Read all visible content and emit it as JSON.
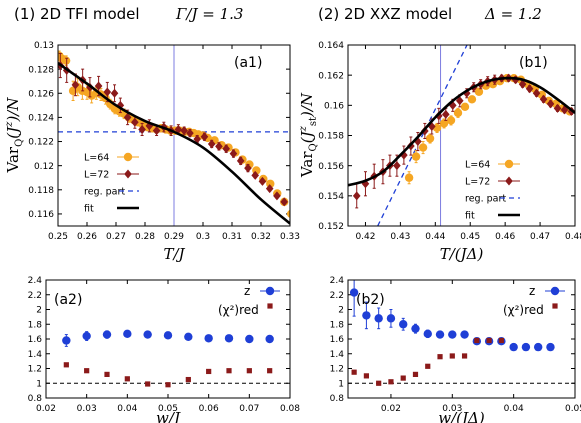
{
  "headers": {
    "left": {
      "label": "(1) 2D TFI model",
      "param": "Γ/J = 1.3"
    },
    "right": {
      "label": "(2) 2D XXZ model",
      "param": "Δ = 1.2"
    }
  },
  "colors": {
    "L64": "#f5a623",
    "L72": "#8b1a1a",
    "z": "#1f3fd6",
    "chi": "#8b1a1a",
    "fit": "#000000",
    "reg": "#1f3fd6",
    "vline": "#7d7de0"
  },
  "chart_data": [
    {
      "id": "a1",
      "type": "scatter",
      "panel_label": "(a1)",
      "xlabel": "T/J",
      "ylabel": "Var_Q(J^z)/N",
      "xlim": [
        0.25,
        0.33
      ],
      "ylim": [
        0.115,
        0.13
      ],
      "xticks": [
        0.25,
        0.26,
        0.27,
        0.28,
        0.29,
        0.3,
        0.31,
        0.32,
        0.33
      ],
      "xticklabels": [
        "0.25",
        "0.26",
        "0.27",
        "0.28",
        "0.29",
        "0.3",
        "0.31",
        "0.32",
        "0.33"
      ],
      "yticks": [
        0.116,
        0.118,
        0.12,
        0.122,
        0.124,
        0.126,
        0.128,
        0.13
      ],
      "yticklabels": [
        "0.116",
        "0.118",
        "0.12",
        "0.122",
        "0.124",
        "0.126",
        "0.128",
        "0.13"
      ],
      "vline": 0.29,
      "reg_part": {
        "y": 0.1228
      },
      "fit": {
        "x": [
          0.25,
          0.26,
          0.27,
          0.28,
          0.29,
          0.3,
          0.31,
          0.32,
          0.33
        ],
        "y": [
          0.1285,
          0.1268,
          0.125,
          0.1237,
          0.1228,
          0.1215,
          0.1195,
          0.1172,
          0.1152
        ]
      },
      "legend": {
        "placement": "lower-left",
        "entries": [
          "L=64",
          "L=72",
          "reg. part",
          "fit"
        ]
      },
      "series": [
        {
          "name": "L=64",
          "marker": "circle",
          "x": [
            0.2504,
            0.2512,
            0.2528,
            0.2552,
            0.2568,
            0.2584,
            0.26,
            0.2616,
            0.2632,
            0.2648,
            0.2664,
            0.268,
            0.2696,
            0.2712,
            0.2728,
            0.2744,
            0.276,
            0.2776,
            0.2792,
            0.2808,
            0.2824,
            0.284,
            0.2856,
            0.2872,
            0.2888,
            0.2904,
            0.292,
            0.2936,
            0.2952,
            0.2968,
            0.2984,
            0.3,
            0.3016,
            0.304,
            0.3064,
            0.3088,
            0.3112,
            0.3136,
            0.316,
            0.3184,
            0.3208,
            0.3232,
            0.3256,
            0.328,
            0.3304
          ],
          "y": [
            0.1291,
            0.1289,
            0.1287,
            0.1262,
            0.1265,
            0.1262,
            0.1261,
            0.1258,
            0.126,
            0.1259,
            0.1256,
            0.1251,
            0.1247,
            0.1245,
            0.1243,
            0.124,
            0.1238,
            0.1236,
            0.1234,
            0.1232,
            0.1231,
            0.123,
            0.1231,
            0.123,
            0.1229,
            0.1229,
            0.1229,
            0.1228,
            0.1228,
            0.1227,
            0.1226,
            0.1225,
            0.1223,
            0.1221,
            0.1217,
            0.1215,
            0.1211,
            0.1205,
            0.1201,
            0.1196,
            0.1189,
            0.1185,
            0.1177,
            0.117,
            0.116
          ],
          "yerr": [
            0.0004,
            0.0004,
            0.0004,
            0.0008,
            0.0007,
            0.0007,
            0.0006,
            0.0006,
            0.0005,
            0.0005,
            0.0005,
            0.0004,
            0.0004,
            0.0004,
            0.0004,
            0.0004,
            0.0003,
            0.0003,
            0.0003,
            0.0003,
            0.0003,
            0.0003,
            0.0003,
            0.0003,
            0.0003,
            0.0003,
            0.0002,
            0.0002,
            0.0002,
            0.0002,
            0.0002,
            0.0002,
            0.0002,
            0.0002,
            0.0002,
            0.0002,
            0.0002,
            0.0002,
            0.0002,
            0.0002,
            0.0002,
            0.0002,
            0.0002,
            0.0002,
            0.0002
          ]
        },
        {
          "name": "L=72",
          "marker": "diamond",
          "x": [
            0.2508,
            0.253,
            0.256,
            0.2585,
            0.261,
            0.264,
            0.267,
            0.2695,
            0.2715,
            0.274,
            0.2765,
            0.279,
            0.2815,
            0.284,
            0.2865,
            0.289,
            0.2915,
            0.2935,
            0.2955,
            0.298,
            0.3005,
            0.303,
            0.3055,
            0.308,
            0.3105,
            0.313,
            0.3155,
            0.318,
            0.3205,
            0.323,
            0.3255,
            0.328,
            0.331
          ],
          "y": [
            0.1283,
            0.1279,
            0.1267,
            0.1271,
            0.1265,
            0.1266,
            0.1261,
            0.126,
            0.125,
            0.124,
            0.1236,
            0.123,
            0.1233,
            0.1229,
            0.1232,
            0.1229,
            0.123,
            0.1229,
            0.1227,
            0.1222,
            0.1224,
            0.1218,
            0.1216,
            0.1214,
            0.121,
            0.1204,
            0.1198,
            0.1192,
            0.1187,
            0.1181,
            0.1175,
            0.117,
            0.1155
          ],
          "yerr": [
            0.001,
            0.001,
            0.0009,
            0.0009,
            0.0008,
            0.0008,
            0.0008,
            0.0007,
            0.0006,
            0.0006,
            0.0005,
            0.0005,
            0.0005,
            0.0004,
            0.0004,
            0.0004,
            0.0004,
            0.0003,
            0.0003,
            0.0003,
            0.0003,
            0.0003,
            0.0003,
            0.0003,
            0.0003,
            0.0003,
            0.0003,
            0.0002,
            0.0002,
            0.0002,
            0.0002,
            0.0002,
            0.0002
          ]
        }
      ]
    },
    {
      "id": "b1",
      "type": "scatter",
      "panel_label": "(b1)",
      "xlabel": "T/(JΔ)",
      "ylabel": "Var_Q(J^z_st)/N",
      "xlim": [
        0.415,
        0.48
      ],
      "ylim": [
        0.152,
        0.164
      ],
      "xticks": [
        0.42,
        0.43,
        0.44,
        0.45,
        0.46,
        0.47,
        0.48
      ],
      "xticklabels": [
        "0.42",
        "0.43",
        "0.44",
        "0.45",
        "0.46",
        "0.47",
        "0.48"
      ],
      "yticks": [
        0.152,
        0.154,
        0.156,
        0.158,
        0.16,
        0.162,
        0.164
      ],
      "yticklabels": [
        "0.152",
        "0.154",
        "0.156",
        "0.158",
        "0.16",
        "0.162",
        "0.164"
      ],
      "vline": 0.4415,
      "reg_part": {
        "x": [
          0.4235,
          0.4495
        ],
        "y": [
          0.152,
          0.1642
        ]
      },
      "fit": {
        "x": [
          0.415,
          0.42,
          0.425,
          0.43,
          0.435,
          0.44,
          0.445,
          0.45,
          0.455,
          0.46,
          0.465,
          0.47,
          0.475,
          0.48
        ],
        "y": [
          0.1547,
          0.155,
          0.1556,
          0.1567,
          0.1579,
          0.1592,
          0.1603,
          0.1611,
          0.1616,
          0.1618,
          0.1617,
          0.1612,
          0.1604,
          0.1595
        ]
      },
      "legend": {
        "placement": "lower-right",
        "entries": [
          "L=64",
          "L=72",
          "reg. part",
          "fit"
        ]
      },
      "series": [
        {
          "name": "L=64",
          "marker": "circle",
          "x": [
            0.4325,
            0.4345,
            0.4365,
            0.4385,
            0.4405,
            0.4425,
            0.4445,
            0.4465,
            0.4485,
            0.4505,
            0.4525,
            0.4545,
            0.4565,
            0.4585,
            0.4605,
            0.4625,
            0.4645,
            0.4665,
            0.4685,
            0.4705,
            0.4725,
            0.4745,
            0.4765,
            0.4785
          ],
          "y": [
            0.1552,
            0.1566,
            0.1572,
            0.1578,
            0.1585,
            0.1588,
            0.159,
            0.1595,
            0.1599,
            0.1604,
            0.1609,
            0.1613,
            0.1614,
            0.1616,
            0.1618,
            0.1618,
            0.1617,
            0.1614,
            0.1611,
            0.1607,
            0.1603,
            0.1601,
            0.1598,
            0.1596
          ],
          "yerr": [
            0.0004,
            0.0004,
            0.0004,
            0.0003,
            0.0003,
            0.0003,
            0.0003,
            0.0003,
            0.0002,
            0.0002,
            0.0002,
            0.0002,
            0.0002,
            0.0002,
            0.0002,
            0.0002,
            0.0002,
            0.0002,
            0.0002,
            0.0002,
            0.0002,
            0.0002,
            0.0002,
            0.0002
          ]
        },
        {
          "name": "L=72",
          "marker": "diamond",
          "x": [
            0.4175,
            0.42,
            0.4225,
            0.425,
            0.427,
            0.429,
            0.431,
            0.433,
            0.435,
            0.437,
            0.439,
            0.441,
            0.443,
            0.445,
            0.447,
            0.449,
            0.451,
            0.453,
            0.455,
            0.457,
            0.459,
            0.461,
            0.463,
            0.465,
            0.467,
            0.469,
            0.471,
            0.473,
            0.475,
            0.477,
            0.479
          ],
          "y": [
            0.154,
            0.1548,
            0.1553,
            0.1556,
            0.156,
            0.156,
            0.1567,
            0.1573,
            0.1576,
            0.1583,
            0.1586,
            0.1593,
            0.1594,
            0.16,
            0.1603,
            0.1608,
            0.1612,
            0.1614,
            0.1616,
            0.1617,
            0.1618,
            0.1618,
            0.1617,
            0.1614,
            0.1611,
            0.1608,
            0.1604,
            0.1601,
            0.1598,
            0.1597,
            0.1596
          ],
          "yerr": [
            0.0008,
            0.0008,
            0.0008,
            0.0008,
            0.0007,
            0.0007,
            0.0006,
            0.0006,
            0.0006,
            0.0005,
            0.0005,
            0.0005,
            0.0004,
            0.0004,
            0.0004,
            0.0003,
            0.0003,
            0.0003,
            0.0003,
            0.0003,
            0.0002,
            0.0002,
            0.0002,
            0.0002,
            0.0002,
            0.0002,
            0.0002,
            0.0002,
            0.0002,
            0.0002,
            0.0002
          ]
        }
      ]
    },
    {
      "id": "a2",
      "type": "scatter",
      "panel_label": "(a2)",
      "xlabel": "w/J",
      "ylabel": "",
      "xlim": [
        0.02,
        0.08
      ],
      "ylim": [
        0.8,
        2.4
      ],
      "xticks": [
        0.02,
        0.03,
        0.04,
        0.05,
        0.06,
        0.07,
        0.08
      ],
      "xticklabels": [
        "0.02",
        "0.03",
        "0.04",
        "0.05",
        "0.06",
        "0.07",
        "0.08"
      ],
      "yticks": [
        0.8,
        1.0,
        1.2,
        1.4,
        1.6,
        1.8,
        2.0,
        2.2,
        2.4
      ],
      "yticklabels": [
        "0.8",
        "1",
        "1.2",
        "1.4",
        "1.6",
        "1.8",
        "2",
        "2.2",
        "2.4"
      ],
      "hline": 1.0,
      "legend": {
        "placement": "top-right",
        "entries": [
          "z",
          "(χ²)red"
        ]
      },
      "series": [
        {
          "name": "z",
          "marker": "circle",
          "x": [
            0.025,
            0.03,
            0.035,
            0.04,
            0.045,
            0.05,
            0.055,
            0.06,
            0.065,
            0.07,
            0.075
          ],
          "y": [
            1.58,
            1.64,
            1.66,
            1.67,
            1.66,
            1.65,
            1.63,
            1.61,
            1.61,
            1.6,
            1.6
          ],
          "yerr": [
            0.08,
            0.06,
            0.05,
            0.04,
            0.03,
            0.03,
            0.03,
            0.03,
            0.03,
            0.03,
            0.03
          ]
        },
        {
          "name": "(χ²)red",
          "marker": "square",
          "x": [
            0.025,
            0.03,
            0.035,
            0.04,
            0.045,
            0.05,
            0.055,
            0.06,
            0.065,
            0.07,
            0.075
          ],
          "y": [
            1.25,
            1.17,
            1.12,
            1.06,
            0.99,
            0.98,
            1.05,
            1.16,
            1.17,
            1.17,
            1.17
          ]
        }
      ]
    },
    {
      "id": "b2",
      "type": "scatter",
      "panel_label": "(b2)",
      "xlabel": "w/(JΔ)",
      "ylabel": "",
      "xlim": [
        0.013,
        0.05
      ],
      "ylim": [
        0.8,
        2.4
      ],
      "xticks": [
        0.02,
        0.03,
        0.04,
        0.05
      ],
      "xticklabels": [
        "0.02",
        "0.03",
        "0.04",
        "0.05"
      ],
      "yticks": [
        0.8,
        1.0,
        1.2,
        1.4,
        1.6,
        1.8,
        2.0,
        2.2,
        2.4
      ],
      "yticklabels": [
        "0.8",
        "1",
        "1.2",
        "1.4",
        "1.6",
        "1.8",
        "2",
        "2.2",
        "2.4"
      ],
      "hline": 1.0,
      "legend": {
        "placement": "top-right",
        "entries": [
          "z",
          "(χ²)red"
        ]
      },
      "series": [
        {
          "name": "z",
          "marker": "circle",
          "x": [
            0.014,
            0.016,
            0.018,
            0.02,
            0.022,
            0.024,
            0.026,
            0.028,
            0.03,
            0.032,
            0.034,
            0.036,
            0.038,
            0.04,
            0.042,
            0.044,
            0.046
          ],
          "y": [
            2.23,
            1.92,
            1.88,
            1.88,
            1.8,
            1.74,
            1.67,
            1.66,
            1.66,
            1.66,
            1.57,
            1.57,
            1.57,
            1.49,
            1.49,
            1.49,
            1.49
          ],
          "yerr": [
            0.32,
            0.18,
            0.14,
            0.12,
            0.08,
            0.06,
            0.05,
            0.04,
            0.04,
            0.03,
            0.03,
            0.03,
            0.03,
            0.03,
            0.03,
            0.03,
            0.03
          ]
        },
        {
          "name": "(χ²)red",
          "marker": "square",
          "x": [
            0.014,
            0.016,
            0.018,
            0.02,
            0.022,
            0.024,
            0.026,
            0.028,
            0.03,
            0.032,
            0.034,
            0.036,
            0.038
          ],
          "y": [
            1.15,
            1.1,
            1.0,
            1.02,
            1.07,
            1.12,
            1.23,
            1.36,
            1.37,
            1.37,
            1.58,
            1.58,
            1.58
          ]
        }
      ]
    }
  ]
}
